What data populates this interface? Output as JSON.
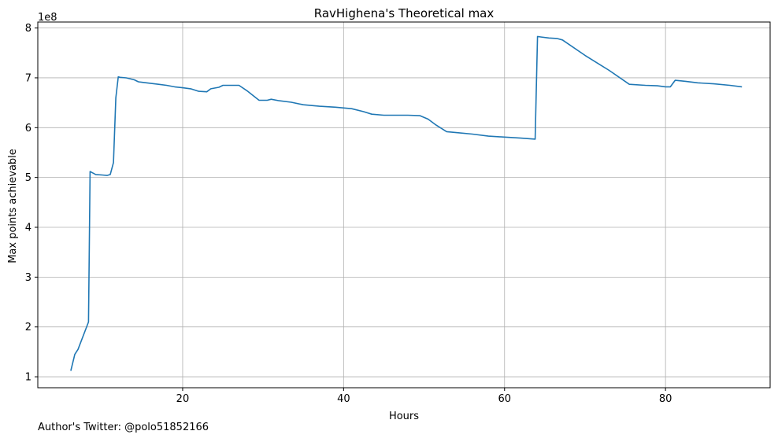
{
  "chart_data": {
    "type": "line",
    "title": "RavHighena's Theoretical max",
    "xlabel": "Hours",
    "ylabel": "Max points achievable",
    "y_scale_label": "1e8",
    "xlim": [
      2,
      93
    ],
    "ylim": [
      0.78,
      8.12
    ],
    "xticks": [
      20,
      40,
      60,
      80
    ],
    "yticks": [
      1,
      2,
      3,
      4,
      5,
      6,
      7,
      8
    ],
    "grid": true,
    "line_color": "#1f77b4",
    "series": [
      {
        "x": [
          6.1,
          6.6,
          7.0,
          8.3,
          8.4,
          8.5,
          9.2,
          10.0,
          10.6,
          11.0,
          11.4,
          11.7,
          12.0,
          12.2,
          13.0,
          14.0,
          14.5,
          15.0,
          16.0,
          17.0,
          18.0,
          19.0,
          20.0,
          21.0,
          22.0,
          23.0,
          23.5,
          24.5,
          25.0,
          26.0,
          27.0,
          28.0,
          29.5,
          30.5,
          31.0,
          32.0,
          33.5,
          35.0,
          37.0,
          39.0,
          41.0,
          42.5,
          43.5,
          45.0,
          46.5,
          48.0,
          49.5,
          50.5,
          51.5,
          52.8,
          54.0,
          56.0,
          58.0,
          60.0,
          62.0,
          63.8,
          64.1,
          64.5,
          65.5,
          66.5,
          67.2,
          70.0,
          73.0,
          75.5,
          77.5,
          79.0,
          80.0,
          80.6,
          81.2,
          82.5,
          84.0,
          86.0,
          88.0,
          89.5
        ],
        "y": [
          1.12,
          1.45,
          1.55,
          2.1,
          3.6,
          5.12,
          5.06,
          5.05,
          5.04,
          5.06,
          5.3,
          6.6,
          7.02,
          7.01,
          7.0,
          6.96,
          6.92,
          6.91,
          6.89,
          6.87,
          6.85,
          6.82,
          6.8,
          6.78,
          6.73,
          6.72,
          6.78,
          6.81,
          6.85,
          6.85,
          6.85,
          6.74,
          6.55,
          6.55,
          6.57,
          6.54,
          6.51,
          6.46,
          6.43,
          6.41,
          6.38,
          6.32,
          6.27,
          6.25,
          6.25,
          6.25,
          6.24,
          6.17,
          6.05,
          5.92,
          5.9,
          5.87,
          5.83,
          5.81,
          5.79,
          5.77,
          7.83,
          7.82,
          7.8,
          7.79,
          7.76,
          7.45,
          7.15,
          6.87,
          6.85,
          6.84,
          6.82,
          6.82,
          6.95,
          6.93,
          6.9,
          6.88,
          6.85,
          6.82
        ]
      }
    ]
  },
  "footer": "Author's Twitter: @polo51852166"
}
